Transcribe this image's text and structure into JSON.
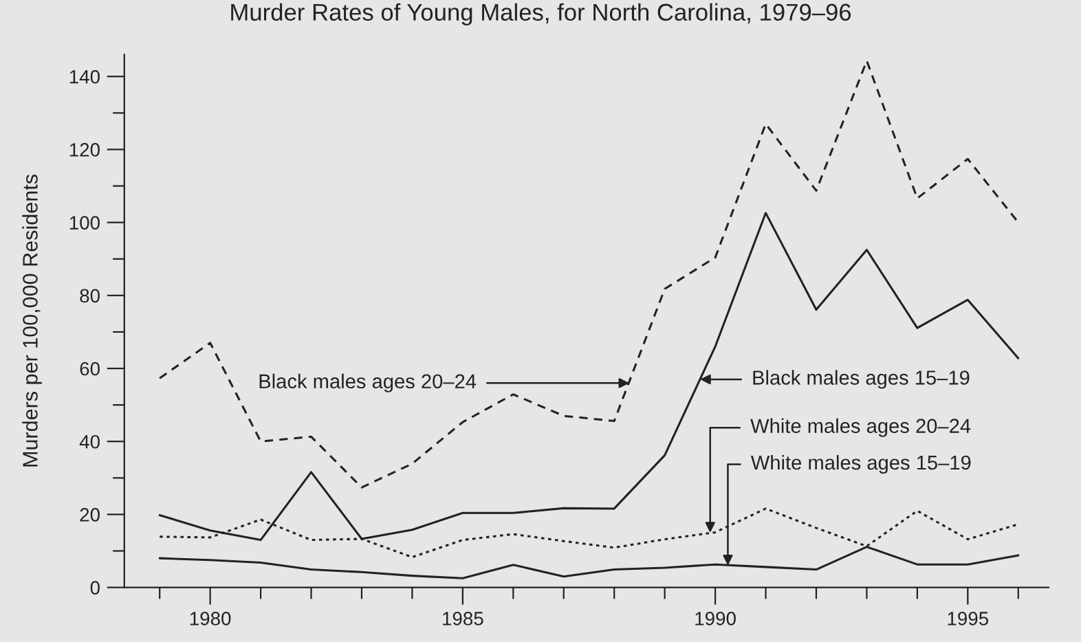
{
  "chart_data": {
    "type": "line",
    "title": "Murder Rates of Young Males, for North Carolina, 1979–96",
    "ylabel": "Murders per 100,000 Residents",
    "x": [
      1979,
      1980,
      1981,
      1982,
      1983,
      1984,
      1985,
      1986,
      1987,
      1988,
      1989,
      1990,
      1991,
      1992,
      1993,
      1994,
      1995,
      1996
    ],
    "series": [
      {
        "color": "#222222",
        "line_style": "dashed",
        "values": [
          57.3,
          67,
          40,
          41.3,
          27.4,
          33.9,
          45.3,
          52.9,
          47,
          45.6,
          81.8,
          90.4,
          127,
          108.7,
          144.3,
          106.6,
          117.4,
          100
        ]
      },
      {
        "color": "#222222",
        "line_style": "solid",
        "values": [
          19.8,
          15.6,
          13,
          31.6,
          13.3,
          15.8,
          20.4,
          20.4,
          21.7,
          21.6,
          36.2,
          66,
          102.6,
          76.1,
          92.5,
          71.1,
          78.8,
          62.8
        ]
      },
      {
        "color": "#222222",
        "line_style": "dotted",
        "values": [
          13.9,
          13.7,
          18.6,
          13,
          13.3,
          8.3,
          13,
          14.6,
          12.7,
          10.9,
          13.2,
          15.1,
          21.6,
          16.3,
          11.3,
          21,
          13.2,
          17.3
        ]
      },
      {
        "color": "#222222",
        "line_style": "solid",
        "values": [
          8,
          7.5,
          6.8,
          4.9,
          4.2,
          3.2,
          2.5,
          6.2,
          3,
          4.9,
          5.4,
          6.3,
          5.6,
          4.9,
          11.1,
          6.3,
          6.3,
          8.8
        ]
      }
    ],
    "annotations": [
      {
        "text": "Black males ages 20–24",
        "x": 1988.3,
        "y": 56
      },
      {
        "text": "Black males ages 15–19",
        "x": 1989.7,
        "y": 57
      },
      {
        "text": "White males ages 20–24",
        "x": 1989.9,
        "y": 15
      },
      {
        "text": "White males ages 15–19",
        "x": 1990.25,
        "y": 6
      }
    ],
    "xlim": [
      1978.3,
      1996.6
    ],
    "ylim": [
      0,
      146
    ],
    "xticks": [
      {
        "value": 1979,
        "label": null
      },
      1980,
      {
        "value": 1981,
        "label": null
      },
      {
        "value": 1982,
        "label": null
      },
      {
        "value": 1983,
        "label": null
      },
      {
        "value": 1984,
        "label": null
      },
      1985,
      {
        "value": 1986,
        "label": null
      },
      {
        "value": 1987,
        "label": null
      },
      {
        "value": 1988,
        "label": null
      },
      {
        "value": 1989,
        "label": null
      },
      1990,
      {
        "value": 1991,
        "label": null
      },
      {
        "value": 1992,
        "label": null
      },
      {
        "value": 1993,
        "label": null
      },
      {
        "value": 1994,
        "label": null
      },
      1995,
      {
        "value": 1996,
        "label": null
      }
    ],
    "yticks": [
      0,
      {
        "value": 10,
        "label": null
      },
      20,
      {
        "value": 30,
        "label": null
      },
      40,
      {
        "value": 50,
        "label": null
      },
      60,
      {
        "value": 70,
        "label": null
      },
      80,
      {
        "value": 90,
        "label": null
      },
      100,
      {
        "value": 110,
        "label": null
      },
      120,
      {
        "value": 130,
        "label": null
      },
      140
    ],
    "grid": false,
    "legend": false,
    "marker": "none"
  }
}
